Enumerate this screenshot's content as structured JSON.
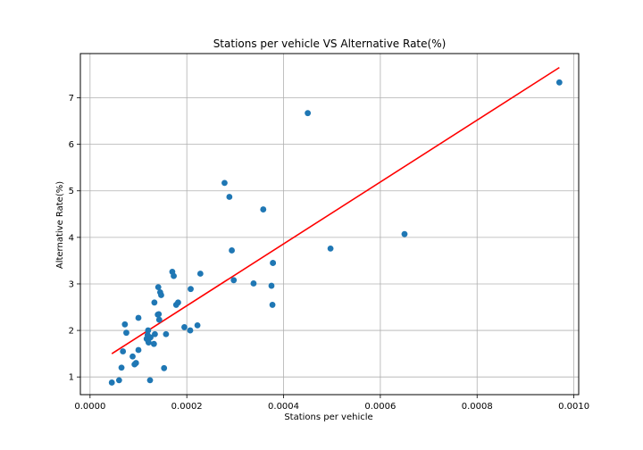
{
  "chart_data": {
    "type": "scatter",
    "title": "Stations per vehicle VS Alternative Rate(%)",
    "xlabel": "Stations per vehicle",
    "ylabel": "Alternative Rate(%)",
    "xlim": [
      -2e-05,
      0.00101
    ],
    "ylim": [
      0.62,
      7.95
    ],
    "x_ticks": [
      0.0,
      0.0002,
      0.0004,
      0.0006,
      0.0008,
      0.001
    ],
    "x_tick_labels": [
      "0.0000",
      "0.0002",
      "0.0004",
      "0.0006",
      "0.0008",
      "0.0010"
    ],
    "y_ticks": [
      1,
      2,
      3,
      4,
      5,
      6,
      7
    ],
    "y_tick_labels": [
      "1",
      "2",
      "3",
      "4",
      "5",
      "6",
      "7"
    ],
    "grid": true,
    "series": [
      {
        "kind": "scatter",
        "color": "#1f77b4",
        "x": [
          4.5e-05,
          6e-05,
          6.5e-05,
          6.8e-05,
          7.2e-05,
          7.5e-05,
          8.8e-05,
          9.2e-05,
          9.5e-05,
          0.0001,
          0.0001,
          0.000117,
          0.000119,
          0.00012,
          0.00012,
          0.000121,
          0.000124,
          0.000125,
          0.000132,
          0.000133,
          0.000134,
          0.00014,
          0.000141,
          0.000142,
          0.000143,
          0.000145,
          0.000147,
          0.000153,
          0.000157,
          0.00017,
          0.000173,
          0.000178,
          0.000182,
          0.000195,
          0.000207,
          0.000208,
          0.000222,
          0.000228,
          0.000278,
          0.000288,
          0.000293,
          0.000297,
          0.000338,
          0.000358,
          0.000375,
          0.000377,
          0.000378,
          0.000378,
          0.00045,
          0.000497,
          0.00065,
          0.00097
        ],
        "y": [
          0.88,
          0.93,
          1.2,
          1.55,
          2.13,
          1.95,
          1.44,
          1.27,
          1.3,
          2.27,
          1.58,
          1.82,
          1.9,
          2.0,
          1.78,
          1.74,
          0.93,
          1.85,
          1.71,
          2.6,
          1.92,
          2.34,
          2.93,
          2.35,
          2.23,
          2.82,
          2.76,
          1.19,
          1.92,
          3.26,
          3.17,
          2.55,
          2.6,
          2.07,
          2.0,
          2.89,
          2.11,
          3.22,
          5.17,
          4.87,
          3.72,
          3.08,
          3.01,
          4.6,
          2.96,
          2.55,
          3.45,
          3.45,
          6.67,
          3.76,
          4.07,
          7.33
        ]
      },
      {
        "kind": "line",
        "color": "#ff0000",
        "x": [
          4.5e-05,
          0.00097
        ],
        "y": [
          1.5,
          7.65
        ]
      }
    ]
  }
}
